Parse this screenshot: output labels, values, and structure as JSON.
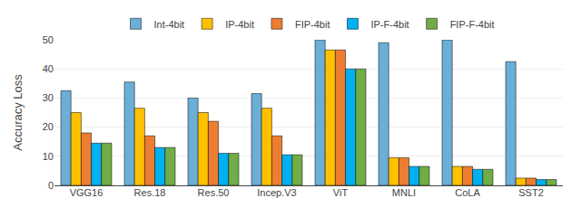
{
  "chart_data": {
    "type": "bar",
    "categories": [
      "VGG16",
      "Res.18",
      "Res.50",
      "Incep.V3",
      "ViT",
      "MNLI",
      "CoLA",
      "SST2"
    ],
    "series": [
      {
        "name": "Int-4bit",
        "color": "#6baed6",
        "values": [
          32.5,
          35.5,
          30.0,
          31.5,
          50.0,
          49.0,
          50.0,
          42.5
        ]
      },
      {
        "name": "IP-4bit",
        "color": "#ffc000",
        "values": [
          25.0,
          26.5,
          25.0,
          26.5,
          46.5,
          9.5,
          6.5,
          2.5
        ]
      },
      {
        "name": "FIP-4bit",
        "color": "#ed7d31",
        "values": [
          18.0,
          17.0,
          22.0,
          17.0,
          46.5,
          9.5,
          6.5,
          2.5
        ]
      },
      {
        "name": "IP-F-4bit",
        "color": "#00b0f0",
        "values": [
          14.5,
          13.0,
          11.0,
          10.5,
          40.0,
          6.5,
          5.5,
          2.0
        ]
      },
      {
        "name": "FIP-F-4bit",
        "color": "#70ad47",
        "values": [
          14.5,
          13.0,
          11.0,
          10.5,
          40.0,
          6.5,
          5.5,
          2.0
        ]
      }
    ],
    "ylabel": "Accuracy Loss",
    "ylim": [
      0,
      50
    ],
    "yticks": [
      0,
      10,
      20,
      30,
      40,
      50
    ],
    "grid": true,
    "legend": "top"
  }
}
